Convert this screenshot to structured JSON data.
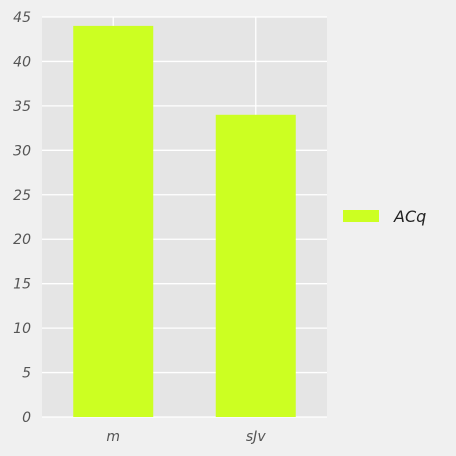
{
  "chart_data": {
    "type": "bar",
    "categories": [
      "m",
      "sJv"
    ],
    "series": [
      {
        "name": "ACq",
        "values": [
          44,
          34
        ],
        "color": "#ccff22"
      }
    ],
    "ylim": [
      0,
      45
    ],
    "yticks": [
      0,
      5,
      10,
      15,
      20,
      25,
      30,
      35,
      40,
      45
    ],
    "grid": true,
    "legend_position": "right",
    "colors": {
      "background": "#f0f0f0",
      "plot_background": "#e5e5e5",
      "grid": "#ffffff"
    }
  }
}
